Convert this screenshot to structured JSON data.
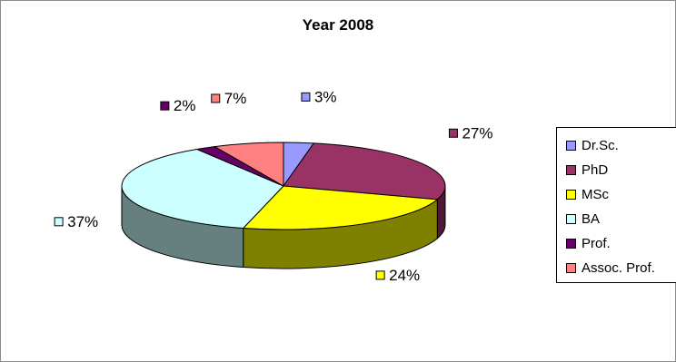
{
  "chart_data": {
    "type": "pie",
    "title": "Year 2008",
    "series": [
      {
        "name": "Dr.Sc.",
        "value": 3,
        "label": "3%",
        "color": "#9999ff"
      },
      {
        "name": "PhD",
        "value": 27,
        "label": "27%",
        "color": "#993366"
      },
      {
        "name": "MSc",
        "value": 24,
        "label": "24%",
        "color": "#ffff00"
      },
      {
        "name": "BA",
        "value": 37,
        "label": "37%",
        "color": "#ccffff"
      },
      {
        "name": "Prof.",
        "value": 2,
        "label": "2%",
        "color": "#660066"
      },
      {
        "name": "Assoc. Prof.",
        "value": 7,
        "label": "7%",
        "color": "#ff8080"
      }
    ],
    "legend_placement": "right",
    "style": "3d-pie"
  }
}
